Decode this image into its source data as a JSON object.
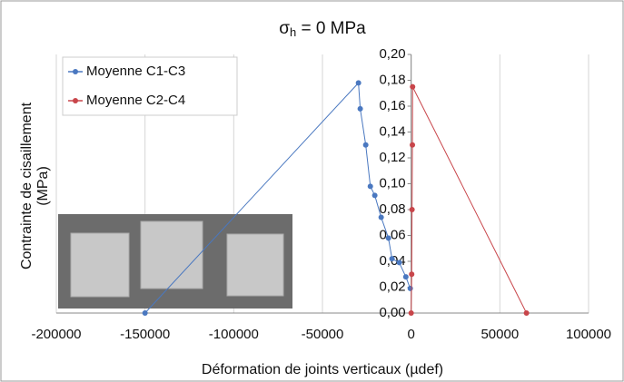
{
  "chart_data": {
    "type": "line",
    "title": {
      "symbol": "σ",
      "subscript": "h",
      "text": " = 0 MPa"
    },
    "x_label": "Déformation de joints verticaux (µdef)",
    "y_label": [
      "Contrainte de cisaillement",
      "(MPa)"
    ],
    "xlim": [
      -200000,
      100000
    ],
    "xticks": [
      -200000,
      -150000,
      -100000,
      -50000,
      0,
      50000,
      100000
    ],
    "ylim": [
      0,
      0.2
    ],
    "yticks": [
      {
        "value": 0,
        "label": "0,00"
      },
      {
        "value": 0.02,
        "label": "0,02"
      },
      {
        "value": 0.04,
        "label": "0,04"
      },
      {
        "value": 0.06,
        "label": "0,06"
      },
      {
        "value": 0.08,
        "label": "0,08"
      },
      {
        "value": 0.1,
        "label": "0,10"
      },
      {
        "value": 0.12,
        "label": "0,12"
      },
      {
        "value": 0.14,
        "label": "0,14"
      },
      {
        "value": 0.16,
        "label": "0,16"
      },
      {
        "value": 0.18,
        "label": "0,18"
      },
      {
        "value": 0.2,
        "label": "0,20"
      }
    ],
    "grid": true,
    "legend": "top-left",
    "series": [
      {
        "name": "Moyenne C1-C3",
        "color": "#4a78c0",
        "x": [
          -150000,
          -29700,
          -28700,
          -25600,
          -23000,
          -20500,
          -16900,
          -12800,
          -10800,
          -6700,
          -3000,
          -500
        ],
        "values": [
          0,
          0.178,
          0.158,
          0.13,
          0.098,
          0.091,
          0.074,
          0.058,
          0.042,
          0.039,
          0.028,
          0.019
        ]
      },
      {
        "name": "Moyenne C2-C4",
        "color": "#c8454a",
        "x": [
          0,
          300,
          500,
          700,
          800,
          65000
        ],
        "values": [
          0,
          0.03,
          0.08,
          0.13,
          0.175,
          0
        ]
      }
    ]
  }
}
